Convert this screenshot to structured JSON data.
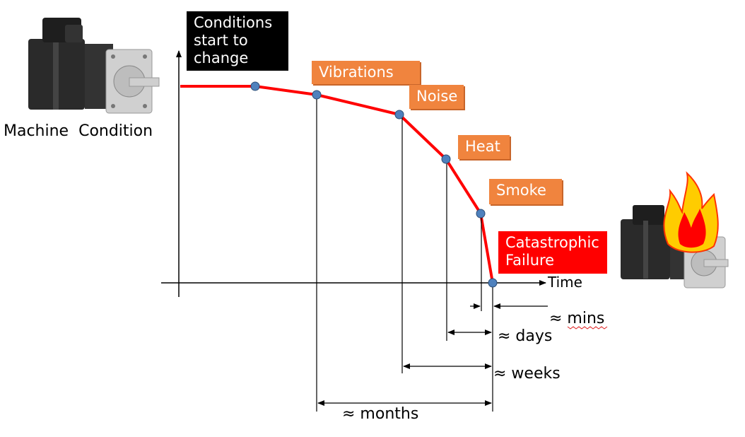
{
  "labels": {
    "conditions_change": "Conditions start to change",
    "vibrations": "Vibrations",
    "noise": "Noise",
    "heat": "Heat",
    "smoke": "Smoke",
    "catastrophic": "Catastrophic Failure",
    "machine_condition": "Machine  Condition",
    "time_axis": "Time"
  },
  "intervals": {
    "mins": "≈ mins",
    "days": "≈ days",
    "weeks": "≈ weeks",
    "months": "≈ months"
  },
  "colors": {
    "curve": "#ff0000",
    "point": "#4f81bd",
    "label_orange": "#f0843e",
    "label_black": "#000000",
    "label_red": "#ff0000"
  },
  "icons": {
    "healthy_motor": "servo-motor-icon",
    "failed_motor": "servo-motor-on-fire-icon"
  }
}
